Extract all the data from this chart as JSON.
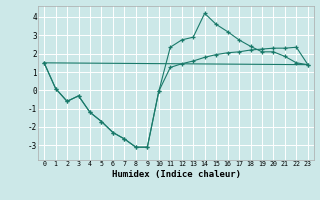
{
  "line1_x": [
    0,
    1,
    2,
    3,
    4,
    5,
    6,
    7,
    8,
    9,
    10,
    11,
    12,
    13,
    14,
    15,
    16,
    17,
    18,
    19,
    20,
    21,
    22,
    23
  ],
  "line1_y": [
    1.5,
    0.1,
    -0.6,
    -0.3,
    -1.2,
    -1.7,
    -2.3,
    -2.65,
    -3.1,
    -3.1,
    -0.05,
    2.35,
    2.75,
    2.9,
    4.2,
    3.6,
    3.2,
    2.75,
    2.4,
    2.1,
    2.1,
    1.85,
    1.5,
    1.4
  ],
  "line2_x": [
    0,
    1,
    2,
    3,
    4,
    5,
    6,
    7,
    8,
    9,
    10,
    11,
    12,
    13,
    14,
    15,
    16,
    17,
    18,
    19,
    20,
    21,
    22,
    23
  ],
  "line2_y": [
    1.5,
    0.1,
    -0.6,
    -0.3,
    -1.2,
    -1.7,
    -2.3,
    -2.65,
    -3.1,
    -3.1,
    -0.05,
    1.25,
    1.45,
    1.6,
    1.8,
    1.95,
    2.05,
    2.1,
    2.2,
    2.25,
    2.3,
    2.3,
    2.35,
    1.4
  ],
  "line3_x": [
    0,
    23
  ],
  "line3_y": [
    1.5,
    1.4
  ],
  "bg_color": "#cce8e8",
  "line_color": "#1a7a6a",
  "grid_color": "#b8d8d8",
  "xlabel": "Humidex (Indice chaleur)",
  "ylim": [
    -3.8,
    4.6
  ],
  "xlim": [
    -0.5,
    23.5
  ],
  "yticks": [
    -3,
    -2,
    -1,
    0,
    1,
    2,
    3,
    4
  ],
  "xticks": [
    0,
    1,
    2,
    3,
    4,
    5,
    6,
    7,
    8,
    9,
    10,
    11,
    12,
    13,
    14,
    15,
    16,
    17,
    18,
    19,
    20,
    21,
    22,
    23
  ]
}
